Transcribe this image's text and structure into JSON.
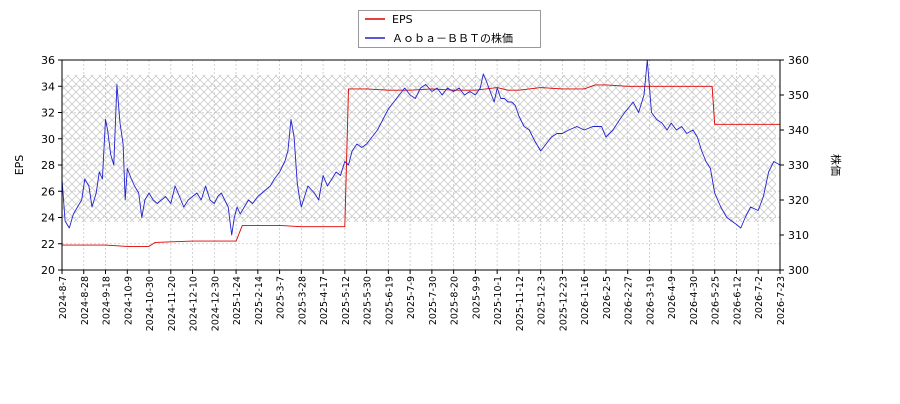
{
  "chart_data": {
    "type": "line",
    "legend": {
      "placement": "top-center",
      "items": [
        {
          "label": "EPS",
          "color": "#dd0000"
        },
        {
          "label": "Ａｏｂａ－ＢＢＴの株価",
          "color": "#2222cc"
        }
      ]
    },
    "left_axis": {
      "label": "EPS",
      "ylim": [
        20,
        36
      ],
      "ticks": [
        20,
        22,
        24,
        26,
        28,
        30,
        32,
        34,
        36
      ]
    },
    "right_axis": {
      "label": "株価",
      "ylim": [
        300,
        360
      ],
      "ticks": [
        300,
        310,
        320,
        330,
        340,
        350,
        360
      ]
    },
    "x_tick_labels": [
      "2024-8-7",
      "2024-8-28",
      "2024-9-18",
      "2024-10-9",
      "2024-10-30",
      "2024-11-20",
      "2024-12-10",
      "2024-12-30",
      "2025-1-24",
      "2025-2-14",
      "2025-3-7",
      "2025-3-28",
      "2025-4-17",
      "2025-5-12",
      "2025-5-30",
      "2025-6-19",
      "2025-7-9",
      "2025-7-30",
      "2025-8-20",
      "2025-9-9",
      "2025-10-1",
      "2025-11-12",
      "2025-12-3",
      "2025-12-23",
      "2026-1-16",
      "2026-2-5",
      "2026-2-27",
      "2026-3-19",
      "2026-4-9",
      "2026-4-30",
      "2026-5-25",
      "2026-6-12",
      "2026-7-2",
      "2026-7-23"
    ],
    "grid": true,
    "series": [
      {
        "name": "EPS",
        "axis": "left",
        "color": "#dd0000",
        "points": [
          [
            "2024-8-7",
            21.9
          ],
          [
            "2024-9-18",
            21.9
          ],
          [
            "2024-10-9",
            21.8
          ],
          [
            "2024-10-30",
            21.8
          ],
          [
            "2024-11-5",
            22.1
          ],
          [
            "2024-12-10",
            22.2
          ],
          [
            "2024-12-30",
            22.2
          ],
          [
            "2025-1-24",
            22.2
          ],
          [
            "2025-1-30",
            23.4
          ],
          [
            "2025-2-14",
            23.4
          ],
          [
            "2025-3-7",
            23.4
          ],
          [
            "2025-3-28",
            23.3
          ],
          [
            "2025-5-12",
            23.3
          ],
          [
            "2025-5-15",
            33.8
          ],
          [
            "2025-5-30",
            33.8
          ],
          [
            "2025-6-19",
            33.7
          ],
          [
            "2025-7-9",
            33.7
          ],
          [
            "2025-7-30",
            33.8
          ],
          [
            "2025-8-20",
            33.7
          ],
          [
            "2025-9-9",
            33.7
          ],
          [
            "2025-10-1",
            33.9
          ],
          [
            "2025-10-22",
            33.7
          ],
          [
            "2025-11-12",
            33.7
          ],
          [
            "2025-12-3",
            33.9
          ],
          [
            "2025-12-23",
            33.8
          ],
          [
            "2026-1-16",
            33.8
          ],
          [
            "2026-1-26",
            34.1
          ],
          [
            "2026-2-5",
            34.1
          ],
          [
            "2026-2-27",
            34.0
          ],
          [
            "2026-3-19",
            34.0
          ],
          [
            "2026-4-9",
            34.0
          ],
          [
            "2026-4-30",
            34.0
          ],
          [
            "2026-5-22",
            34.0
          ],
          [
            "2026-5-25",
            31.1
          ],
          [
            "2026-6-12",
            31.1
          ],
          [
            "2026-7-2",
            31.1
          ],
          [
            "2026-7-29",
            31.1
          ]
        ]
      },
      {
        "name": "Ａｏｂａ－ＢＢＴの株価",
        "axis": "right",
        "color": "#2222cc",
        "points": [
          [
            "2024-8-7",
            326
          ],
          [
            "2024-8-10",
            314
          ],
          [
            "2024-8-14",
            312
          ],
          [
            "2024-8-18",
            316
          ],
          [
            "2024-8-22",
            318
          ],
          [
            "2024-8-26",
            320
          ],
          [
            "2024-8-29",
            326
          ],
          [
            "2024-9-2",
            324
          ],
          [
            "2024-9-5",
            318
          ],
          [
            "2024-9-9",
            322
          ],
          [
            "2024-9-12",
            328
          ],
          [
            "2024-9-15",
            326
          ],
          [
            "2024-9-18",
            343
          ],
          [
            "2024-9-20",
            340
          ],
          [
            "2024-9-23",
            333
          ],
          [
            "2024-9-26",
            330
          ],
          [
            "2024-9-29",
            353
          ],
          [
            "2024-10-2",
            342
          ],
          [
            "2024-10-5",
            336
          ],
          [
            "2024-10-7",
            320
          ],
          [
            "2024-10-9",
            329
          ],
          [
            "2024-10-13",
            326
          ],
          [
            "2024-10-16",
            324
          ],
          [
            "2024-10-20",
            322
          ],
          [
            "2024-10-23",
            315
          ],
          [
            "2024-10-26",
            320
          ],
          [
            "2024-10-30",
            322
          ],
          [
            "2024-11-3",
            320
          ],
          [
            "2024-11-7",
            319
          ],
          [
            "2024-11-11",
            320
          ],
          [
            "2024-11-15",
            321
          ],
          [
            "2024-11-20",
            319
          ],
          [
            "2024-11-24",
            324
          ],
          [
            "2024-11-28",
            321
          ],
          [
            "2024-12-2",
            318
          ],
          [
            "2024-12-6",
            320
          ],
          [
            "2024-12-10",
            321
          ],
          [
            "2024-12-14",
            322
          ],
          [
            "2024-12-18",
            320
          ],
          [
            "2024-12-22",
            324
          ],
          [
            "2024-12-26",
            320
          ],
          [
            "2024-12-30",
            319
          ],
          [
            "2025-1-3",
            321
          ],
          [
            "2025-1-7",
            322
          ],
          [
            "2025-1-11",
            320
          ],
          [
            "2025-1-15",
            318
          ],
          [
            "2025-1-19",
            310
          ],
          [
            "2025-1-22",
            315
          ],
          [
            "2025-1-25",
            318
          ],
          [
            "2025-1-28",
            316
          ],
          [
            "2025-2-1",
            318
          ],
          [
            "2025-2-5",
            320
          ],
          [
            "2025-2-9",
            319
          ],
          [
            "2025-2-14",
            321
          ],
          [
            "2025-2-18",
            322
          ],
          [
            "2025-2-22",
            323
          ],
          [
            "2025-2-26",
            324
          ],
          [
            "2025-3-2",
            326
          ],
          [
            "2025-3-7",
            328
          ],
          [
            "2025-3-12",
            331
          ],
          [
            "2025-3-15",
            334
          ],
          [
            "2025-3-18",
            343
          ],
          [
            "2025-3-21",
            338
          ],
          [
            "2025-3-24",
            325
          ],
          [
            "2025-3-26",
            321
          ],
          [
            "2025-3-28",
            318
          ],
          [
            "2025-4-3",
            324
          ],
          [
            "2025-4-9",
            322
          ],
          [
            "2025-4-13",
            320
          ],
          [
            "2025-4-17",
            327
          ],
          [
            "2025-4-22",
            324
          ],
          [
            "2025-4-27",
            326
          ],
          [
            "2025-5-2",
            328
          ],
          [
            "2025-5-7",
            327
          ],
          [
            "2025-5-12",
            331
          ],
          [
            "2025-5-15",
            330
          ],
          [
            "2025-5-18",
            334
          ],
          [
            "2025-5-22",
            336
          ],
          [
            "2025-5-26",
            335
          ],
          [
            "2025-5-30",
            336
          ],
          [
            "2025-6-4",
            338
          ],
          [
            "2025-6-9",
            340
          ],
          [
            "2025-6-14",
            343
          ],
          [
            "2025-6-19",
            346
          ],
          [
            "2025-6-24",
            348
          ],
          [
            "2025-6-29",
            350
          ],
          [
            "2025-7-4",
            352
          ],
          [
            "2025-7-9",
            350
          ],
          [
            "2025-7-14",
            349
          ],
          [
            "2025-7-19",
            352
          ],
          [
            "2025-7-24",
            353
          ],
          [
            "2025-7-30",
            351
          ],
          [
            "2025-8-4",
            352
          ],
          [
            "2025-8-9",
            350
          ],
          [
            "2025-8-14",
            352
          ],
          [
            "2025-8-20",
            351
          ],
          [
            "2025-8-25",
            352
          ],
          [
            "2025-8-30",
            350
          ],
          [
            "2025-9-4",
            351
          ],
          [
            "2025-9-9",
            350
          ],
          [
            "2025-9-14",
            352
          ],
          [
            "2025-9-17",
            356
          ],
          [
            "2025-9-20",
            354
          ],
          [
            "2025-9-24",
            351
          ],
          [
            "2025-9-28",
            348
          ],
          [
            "2025-10-1",
            352
          ],
          [
            "2025-10-8",
            349
          ],
          [
            "2025-10-15",
            349
          ],
          [
            "2025-10-22",
            348
          ],
          [
            "2025-10-29",
            348
          ],
          [
            "2025-11-5",
            347
          ],
          [
            "2025-11-12",
            344
          ],
          [
            "2025-11-17",
            341
          ],
          [
            "2025-11-22",
            340
          ],
          [
            "2025-11-27",
            337
          ],
          [
            "2025-12-3",
            334
          ],
          [
            "2025-12-8",
            336
          ],
          [
            "2025-12-13",
            338
          ],
          [
            "2025-12-18",
            339
          ],
          [
            "2025-12-23",
            339
          ],
          [
            "2025-12-30",
            340
          ],
          [
            "2026-1-8",
            341
          ],
          [
            "2026-1-16",
            340
          ],
          [
            "2026-1-24",
            341
          ],
          [
            "2026-2-1",
            341
          ],
          [
            "2026-2-5",
            338
          ],
          [
            "2026-2-12",
            340
          ],
          [
            "2026-2-19",
            343
          ],
          [
            "2026-2-24",
            345
          ],
          [
            "2026-2-27",
            346
          ],
          [
            "2026-3-4",
            348
          ],
          [
            "2026-3-9",
            345
          ],
          [
            "2026-3-14",
            350
          ],
          [
            "2026-3-17",
            360
          ],
          [
            "2026-3-21",
            345
          ],
          [
            "2026-3-26",
            343
          ],
          [
            "2026-3-31",
            342
          ],
          [
            "2026-4-5",
            340
          ],
          [
            "2026-4-9",
            342
          ],
          [
            "2026-4-14",
            340
          ],
          [
            "2026-4-19",
            341
          ],
          [
            "2026-4-24",
            339
          ],
          [
            "2026-4-30",
            340
          ],
          [
            "2026-5-5",
            338
          ],
          [
            "2026-5-10",
            334
          ],
          [
            "2026-5-15",
            331
          ],
          [
            "2026-5-20",
            329
          ],
          [
            "2026-5-25",
            322
          ],
          [
            "2026-5-30",
            318
          ],
          [
            "2026-6-4",
            315
          ],
          [
            "2026-6-8",
            314
          ],
          [
            "2026-6-12",
            313
          ],
          [
            "2026-6-16",
            312
          ],
          [
            "2026-6-20",
            315
          ],
          [
            "2026-6-25",
            318
          ],
          [
            "2026-7-2",
            317
          ],
          [
            "2026-7-7",
            321
          ],
          [
            "2026-7-12",
            328
          ],
          [
            "2026-7-17",
            331
          ],
          [
            "2026-7-23",
            330
          ],
          [
            "2026-7-27",
            328
          ],
          [
            "2026-7-29",
            329
          ]
        ]
      }
    ]
  }
}
